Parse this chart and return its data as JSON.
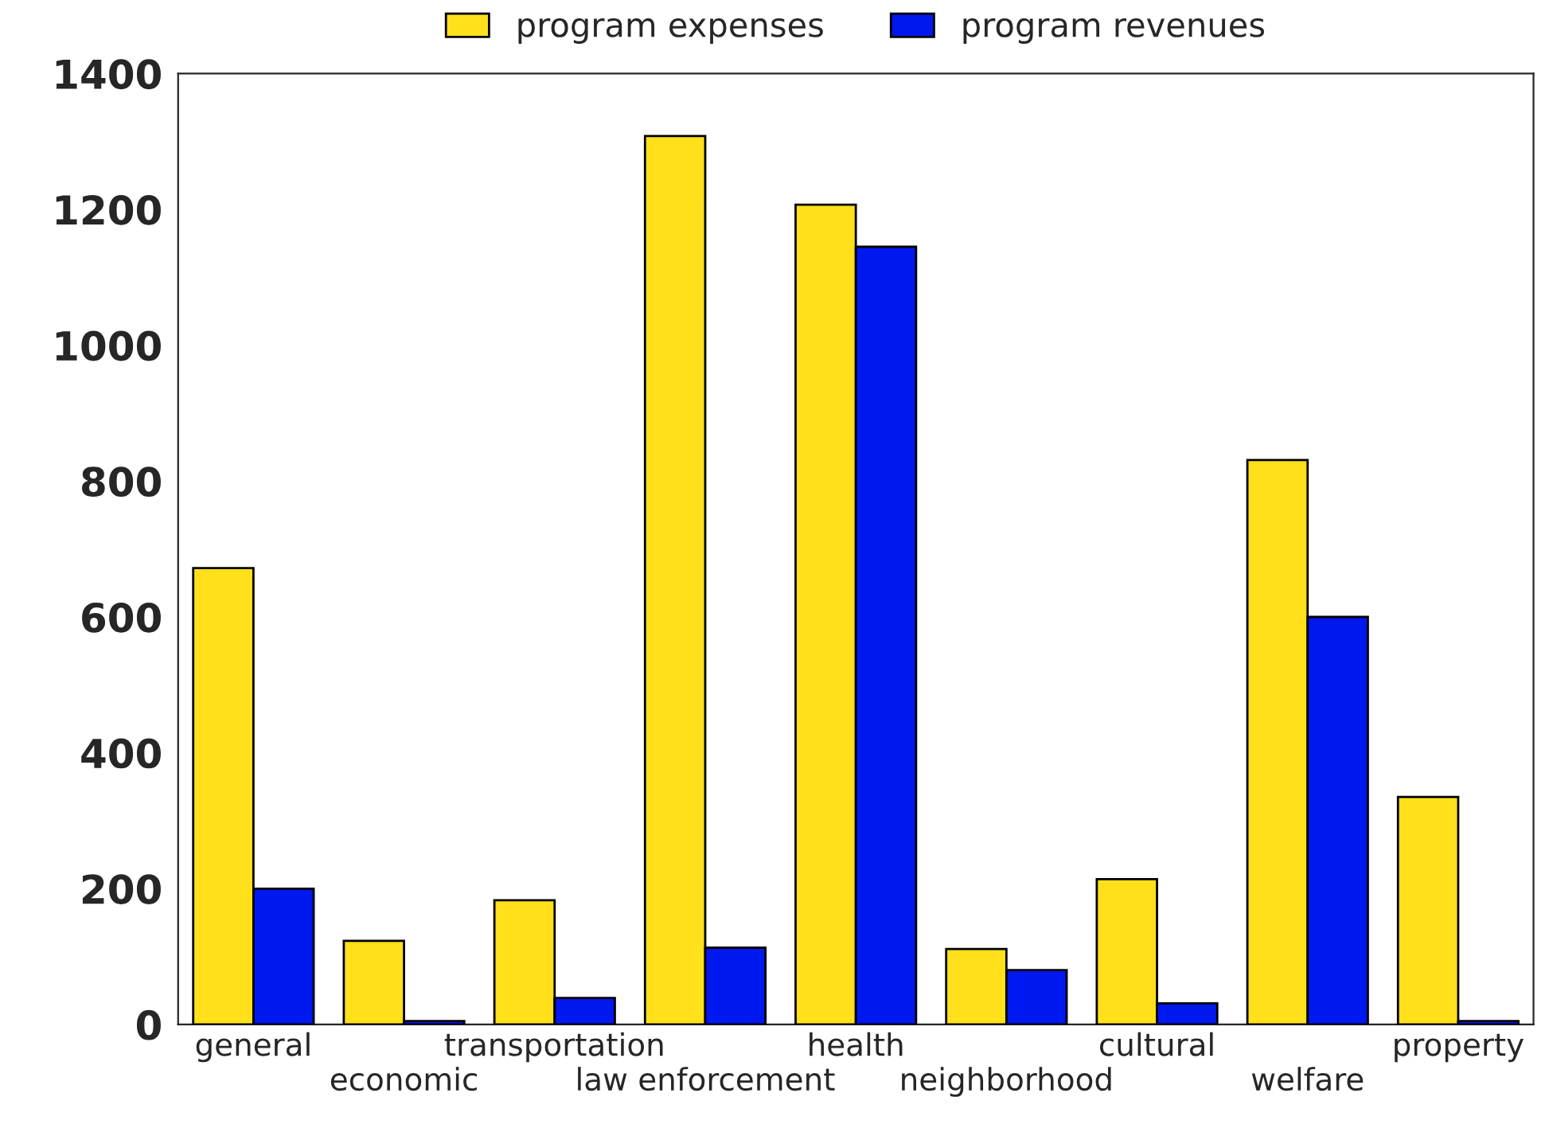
{
  "chart_data": {
    "type": "bar",
    "categories": [
      "general",
      "economic",
      "transportation",
      "law enforcement",
      "health",
      "neighborhood",
      "cultural",
      "welfare",
      "property"
    ],
    "series": [
      {
        "name": "program expenses",
        "color": "#ffe01a",
        "values": [
          672,
          123,
          183,
          1308,
          1207,
          111,
          214,
          831,
          335
        ]
      },
      {
        "name": "program revenues",
        "color": "#0018f0",
        "values": [
          200,
          5,
          39,
          113,
          1145,
          80,
          31,
          600,
          5
        ]
      }
    ],
    "ylim": [
      0,
      1400
    ],
    "yticks": [
      0,
      200,
      400,
      600,
      800,
      1000,
      1200,
      1400
    ],
    "grid": false,
    "legend": "top"
  }
}
